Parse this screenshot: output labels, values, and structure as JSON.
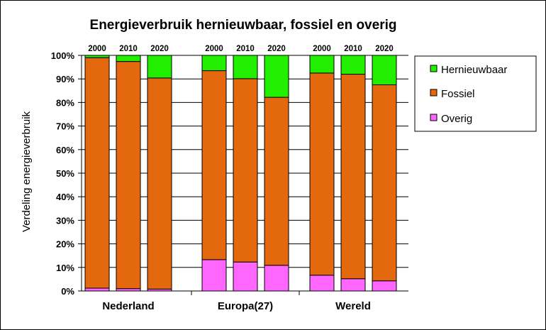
{
  "chart_data": {
    "type": "bar",
    "stacked": true,
    "title": "Energieverbruik  hernieuwbaar, fossiel en overig",
    "ylabel": "Verdeling energieverbruik",
    "xlabel": "",
    "ylim": [
      0,
      100
    ],
    "yticks": [
      "0%",
      "10%",
      "20%",
      "30%",
      "40%",
      "50%",
      "60%",
      "70%",
      "80%",
      "90%",
      "100%"
    ],
    "grid": true,
    "legend_position": "right",
    "groups": [
      {
        "name": "Nederland",
        "years": [
          "2000",
          "2010",
          "2020"
        ]
      },
      {
        "name": "Europa(27)",
        "years": [
          "2000",
          "2010",
          "2020"
        ]
      },
      {
        "name": "Wereld",
        "years": [
          "2000",
          "2010",
          "2020"
        ]
      }
    ],
    "series": [
      {
        "name": "Overig",
        "color": "#ff66ff",
        "values": [
          1.2,
          1.0,
          0.8,
          13.3,
          12.3,
          10.9,
          6.7,
          5.2,
          4.3
        ]
      },
      {
        "name": "Fossiel",
        "color": "#e4690e",
        "values": [
          97.8,
          96.4,
          89.6,
          80.2,
          77.8,
          71.3,
          85.8,
          86.8,
          83.2
        ]
      },
      {
        "name": "Hernieuwbaar",
        "color": "#22ee00",
        "values": [
          1.0,
          2.6,
          9.6,
          6.5,
          9.9,
          17.8,
          7.5,
          8.0,
          12.5
        ]
      }
    ],
    "legend_order": [
      "Hernieuwbaar",
      "Fossiel",
      "Overig"
    ]
  }
}
